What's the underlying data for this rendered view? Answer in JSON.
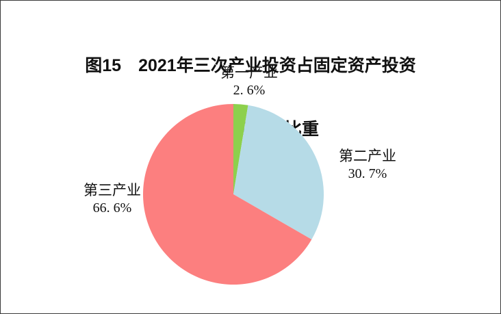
{
  "title": {
    "line1": "图15　2021年三次产业投资占固定资产投资",
    "line2": "（不含农户）比重"
  },
  "chart_data": {
    "type": "pie",
    "title": "图15 2021年三次产业投资占固定资产投资（不含农户）比重",
    "categories": [
      "第一产业",
      "第二产业",
      "第三产业"
    ],
    "values": [
      2.6,
      30.7,
      66.6
    ],
    "value_labels": [
      "2. 6%",
      "30. 7%",
      "66. 6%"
    ],
    "colors": [
      "#8DD04D",
      "#B6DBE7",
      "#FC7F7F"
    ],
    "start_angle_deg": 0,
    "direction": "clockwise",
    "legend_position": "none",
    "labels_outside": true,
    "background": "#ffffff"
  },
  "labels": [
    {
      "name": "第一产业",
      "value": "2. 6%"
    },
    {
      "name": "第二产业",
      "value": "30. 7%"
    },
    {
      "name": "第三产业",
      "value": "66. 6%"
    }
  ]
}
